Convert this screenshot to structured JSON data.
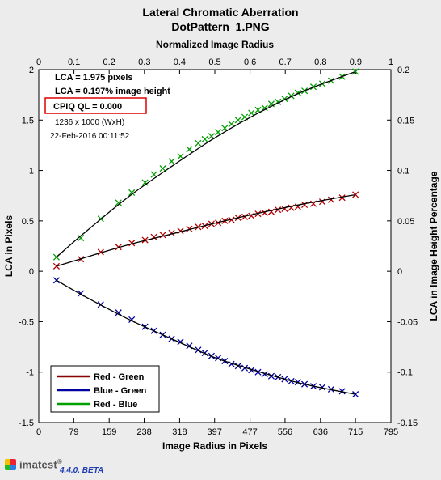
{
  "chart_data": {
    "type": "scatter",
    "title": "Lateral Chromatic Aberration",
    "subtitle": "DotPattern_1.PNG",
    "xlabel": "Image Radius in Pixels",
    "ylabel": "LCA in Pixels",
    "x2label": "Normalized Image Radius",
    "y2label": "LCA in Image Height Percentage",
    "xlim": [
      0,
      795
    ],
    "ylim": [
      -1.5,
      2
    ],
    "x2lim": [
      0,
      1
    ],
    "y2lim": [
      -0.15,
      0.2
    ],
    "xticks": [
      0,
      79,
      159,
      238,
      318,
      397,
      477,
      556,
      636,
      715,
      795
    ],
    "yticks": [
      -1.5,
      -1,
      -0.5,
      0,
      0.5,
      1,
      1.5,
      2
    ],
    "x2ticks": [
      0,
      0.1,
      0.2,
      0.3,
      0.4,
      0.5,
      0.6,
      0.7,
      0.8,
      0.9,
      1
    ],
    "y2ticks": [
      -0.15,
      -0.1,
      -0.05,
      0,
      0.05,
      0.1,
      0.15,
      0.2
    ],
    "grid": false,
    "legend_position": "bottom-left",
    "series": [
      {
        "name": "Red - Green",
        "color": "#b40000",
        "fit_color": "#000000",
        "marker": "x",
        "fit": {
          "x": [
            40,
            100,
            200,
            300,
            400,
            500,
            600,
            715
          ],
          "y": [
            0.05,
            0.13,
            0.26,
            0.37,
            0.48,
            0.58,
            0.67,
            0.76
          ]
        },
        "x": [
          40,
          95,
          140,
          180,
          210,
          240,
          260,
          280,
          300,
          320,
          340,
          360,
          375,
          390,
          405,
          420,
          435,
          450,
          465,
          480,
          495,
          510,
          525,
          540,
          555,
          570,
          585,
          600,
          620,
          640,
          660,
          685,
          715
        ],
        "y": [
          0.05,
          0.12,
          0.19,
          0.24,
          0.28,
          0.31,
          0.34,
          0.36,
          0.38,
          0.4,
          0.42,
          0.44,
          0.45,
          0.47,
          0.48,
          0.5,
          0.51,
          0.53,
          0.54,
          0.55,
          0.57,
          0.58,
          0.59,
          0.61,
          0.62,
          0.63,
          0.64,
          0.66,
          0.67,
          0.69,
          0.71,
          0.73,
          0.76
        ]
      },
      {
        "name": "Blue - Green",
        "color": "#0000a0",
        "fit_color": "#000000",
        "marker": "x",
        "fit": {
          "x": [
            40,
            100,
            200,
            300,
            400,
            500,
            600,
            715
          ],
          "y": [
            -0.09,
            -0.24,
            -0.47,
            -0.67,
            -0.86,
            -1.0,
            -1.12,
            -1.22
          ]
        },
        "x": [
          40,
          95,
          140,
          180,
          210,
          240,
          260,
          280,
          300,
          320,
          340,
          360,
          375,
          390,
          405,
          420,
          435,
          450,
          465,
          480,
          495,
          510,
          525,
          540,
          555,
          570,
          585,
          600,
          620,
          640,
          660,
          685,
          715
        ],
        "y": [
          -0.09,
          -0.22,
          -0.33,
          -0.41,
          -0.48,
          -0.55,
          -0.59,
          -0.63,
          -0.67,
          -0.7,
          -0.74,
          -0.78,
          -0.81,
          -0.84,
          -0.86,
          -0.89,
          -0.92,
          -0.94,
          -0.96,
          -0.98,
          -1.0,
          -1.02,
          -1.04,
          -1.05,
          -1.07,
          -1.09,
          -1.1,
          -1.12,
          -1.14,
          -1.15,
          -1.17,
          -1.19,
          -1.22
        ]
      },
      {
        "name": "Red - Blue",
        "color": "#00a000",
        "fit_color": "#000000",
        "marker": "x",
        "fit": {
          "x": [
            40,
            100,
            200,
            300,
            400,
            500,
            600,
            715
          ],
          "y": [
            0.14,
            0.37,
            0.73,
            1.04,
            1.33,
            1.58,
            1.79,
            1.98
          ]
        },
        "x": [
          40,
          95,
          140,
          180,
          210,
          240,
          260,
          280,
          300,
          320,
          340,
          360,
          375,
          390,
          405,
          420,
          435,
          450,
          465,
          480,
          495,
          510,
          525,
          540,
          555,
          570,
          585,
          600,
          620,
          640,
          660,
          685,
          715
        ],
        "y": [
          0.14,
          0.33,
          0.52,
          0.68,
          0.78,
          0.88,
          0.96,
          1.02,
          1.09,
          1.14,
          1.21,
          1.27,
          1.31,
          1.34,
          1.38,
          1.42,
          1.46,
          1.5,
          1.53,
          1.57,
          1.6,
          1.62,
          1.66,
          1.68,
          1.71,
          1.74,
          1.77,
          1.79,
          1.83,
          1.86,
          1.89,
          1.93,
          1.98
        ]
      }
    ],
    "annotations": {
      "lca_pixels": "LCA = 1.975 pixels",
      "lca_percent": "LCA = 0.197% image height",
      "cpiq": "CPIQ QL = 0.000",
      "dims": "1236 x 1000 (WxH)",
      "timestamp": "22-Feb-2016 00:11:52"
    }
  },
  "footer": {
    "logo_text": "imatest",
    "logo_reg": "®",
    "version": "4.4.0. BETA"
  }
}
